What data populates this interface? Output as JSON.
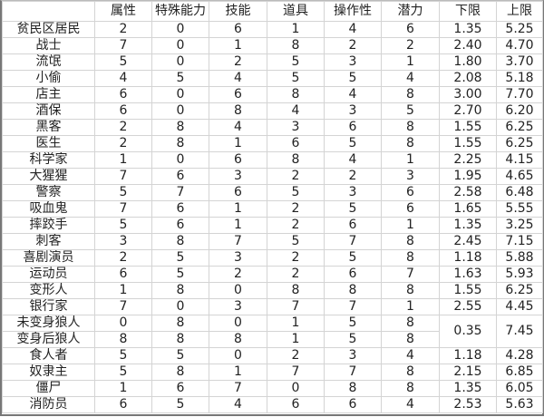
{
  "headers": [
    "",
    "属性",
    "特殊能力",
    "技能",
    "道具",
    "操作性",
    "潜力",
    "下限",
    "上限"
  ],
  "rows": [
    {
      "name": "贫民区居民",
      "vals": [
        "2",
        "0",
        "6",
        "1",
        "4",
        "6"
      ],
      "min": "1.35",
      "max": "5.25"
    },
    {
      "name": "战士",
      "vals": [
        "7",
        "0",
        "1",
        "8",
        "2",
        "2"
      ],
      "min": "2.40",
      "max": "4.70"
    },
    {
      "name": "流氓",
      "vals": [
        "5",
        "0",
        "2",
        "5",
        "3",
        "1"
      ],
      "min": "1.80",
      "max": "3.70"
    },
    {
      "name": "小偷",
      "vals": [
        "4",
        "5",
        "4",
        "5",
        "5",
        "4"
      ],
      "min": "2.08",
      "max": "5.18"
    },
    {
      "name": "店主",
      "vals": [
        "6",
        "0",
        "6",
        "8",
        "4",
        "8"
      ],
      "min": "3.00",
      "max": "7.70"
    },
    {
      "name": "酒保",
      "vals": [
        "6",
        "0",
        "8",
        "4",
        "3",
        "5"
      ],
      "min": "2.70",
      "max": "6.20"
    },
    {
      "name": "黑客",
      "vals": [
        "2",
        "8",
        "4",
        "3",
        "6",
        "8"
      ],
      "min": "1.55",
      "max": "6.25"
    },
    {
      "name": "医生",
      "vals": [
        "2",
        "8",
        "1",
        "6",
        "5",
        "8"
      ],
      "min": "1.55",
      "max": "6.25"
    },
    {
      "name": "科学家",
      "vals": [
        "1",
        "0",
        "6",
        "8",
        "4",
        "1"
      ],
      "min": "2.25",
      "max": "4.15"
    },
    {
      "name": "大猩猩",
      "vals": [
        "7",
        "6",
        "3",
        "2",
        "2",
        "3"
      ],
      "min": "1.95",
      "max": "4.65"
    },
    {
      "name": "警察",
      "vals": [
        "5",
        "7",
        "6",
        "5",
        "3",
        "6"
      ],
      "min": "2.58",
      "max": "6.48"
    },
    {
      "name": "吸血鬼",
      "vals": [
        "7",
        "6",
        "1",
        "2",
        "5",
        "6"
      ],
      "min": "1.65",
      "max": "5.55"
    },
    {
      "name": "摔跤手",
      "vals": [
        "5",
        "6",
        "1",
        "2",
        "6",
        "1"
      ],
      "min": "1.35",
      "max": "3.25"
    },
    {
      "name": "刺客",
      "vals": [
        "3",
        "8",
        "7",
        "5",
        "7",
        "8"
      ],
      "min": "2.45",
      "max": "7.15"
    },
    {
      "name": "喜剧演员",
      "vals": [
        "2",
        "5",
        "3",
        "2",
        "5",
        "8"
      ],
      "min": "1.18",
      "max": "5.88"
    },
    {
      "name": "运动员",
      "vals": [
        "6",
        "5",
        "2",
        "2",
        "6",
        "7"
      ],
      "min": "1.63",
      "max": "5.93"
    },
    {
      "name": "变形人",
      "vals": [
        "1",
        "8",
        "0",
        "8",
        "8",
        "8"
      ],
      "min": "1.55",
      "max": "6.25"
    },
    {
      "name": "银行家",
      "vals": [
        "7",
        "0",
        "3",
        "7",
        "7",
        "1"
      ],
      "min": "2.55",
      "max": "4.45"
    },
    {
      "name": "未变身狼人",
      "vals": [
        "0",
        "8",
        "0",
        "1",
        "5",
        "8"
      ],
      "min": "0.35",
      "max": "7.45",
      "span": 2
    },
    {
      "name": "变身后狼人",
      "vals": [
        "8",
        "8",
        "8",
        "1",
        "5",
        "8"
      ],
      "merged": true
    },
    {
      "name": "食人者",
      "vals": [
        "5",
        "5",
        "0",
        "2",
        "3",
        "4"
      ],
      "min": "1.18",
      "max": "4.28"
    },
    {
      "name": "奴隶主",
      "vals": [
        "5",
        "8",
        "1",
        "7",
        "7",
        "8"
      ],
      "min": "2.15",
      "max": "6.85"
    },
    {
      "name": "僵尸",
      "vals": [
        "1",
        "6",
        "7",
        "0",
        "8",
        "8"
      ],
      "min": "1.35",
      "max": "6.05"
    },
    {
      "name": "消防员",
      "vals": [
        "6",
        "5",
        "4",
        "6",
        "6",
        "4"
      ],
      "min": "2.53",
      "max": "5.63"
    }
  ]
}
